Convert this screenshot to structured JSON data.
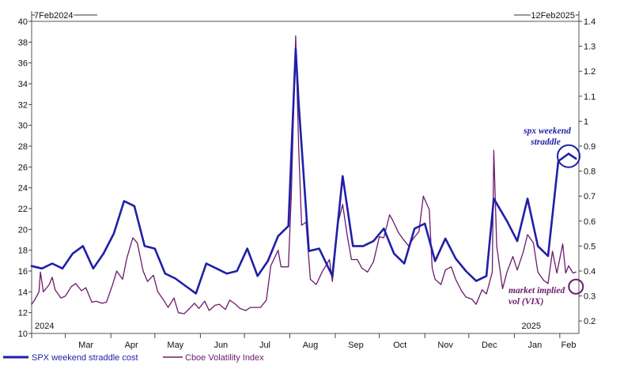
{
  "chart_data": {
    "type": "line",
    "date_markers": {
      "start": "7Feb2024",
      "end": "12Feb2025"
    },
    "year_labels": [
      "2024",
      "2025"
    ],
    "x_ticks": [
      "Mar",
      "Apr",
      "May",
      "Jun",
      "Jul",
      "Aug",
      "Sep",
      "Oct",
      "Nov",
      "Dec",
      "Jan",
      "Feb"
    ],
    "y_left": {
      "ticks": [
        10,
        12,
        14,
        16,
        18,
        20,
        22,
        24,
        26,
        28,
        30,
        32,
        34,
        36,
        38,
        40
      ],
      "range": [
        10,
        40
      ]
    },
    "y_right": {
      "ticks": [
        0.2,
        0.3,
        0.4,
        0.5,
        0.6,
        0.7,
        0.8,
        0.9,
        1,
        1.1,
        1.2,
        1.3,
        1.4
      ],
      "range": [
        0.15,
        1.4
      ]
    },
    "grid": false,
    "legend_position": "bottom-left",
    "series": [
      {
        "name": "SPX weekend straddle cost",
        "axis": "right",
        "color": "#1f1fa8",
        "points": [
          [
            "2024-02-07",
            0.42
          ],
          [
            "2024-02-14",
            0.41
          ],
          [
            "2024-02-21",
            0.43
          ],
          [
            "2024-02-28",
            0.41
          ],
          [
            "2024-03-06",
            0.47
          ],
          [
            "2024-03-13",
            0.5
          ],
          [
            "2024-03-20",
            0.41
          ],
          [
            "2024-03-27",
            0.47
          ],
          [
            "2024-04-03",
            0.55
          ],
          [
            "2024-04-10",
            0.68
          ],
          [
            "2024-04-17",
            0.66
          ],
          [
            "2024-04-24",
            0.5
          ],
          [
            "2024-05-01",
            0.49
          ],
          [
            "2024-05-08",
            0.39
          ],
          [
            "2024-05-15",
            0.37
          ],
          [
            "2024-05-22",
            0.34
          ],
          [
            "2024-05-29",
            0.31
          ],
          [
            "2024-06-05",
            0.43
          ],
          [
            "2024-06-12",
            0.41
          ],
          [
            "2024-06-19",
            0.39
          ],
          [
            "2024-06-26",
            0.4
          ],
          [
            "2024-07-03",
            0.49
          ],
          [
            "2024-07-10",
            0.38
          ],
          [
            "2024-07-17",
            0.44
          ],
          [
            "2024-07-24",
            0.54
          ],
          [
            "2024-07-31",
            0.58
          ],
          [
            "2024-08-05",
            1.29
          ],
          [
            "2024-08-07",
            1.07
          ],
          [
            "2024-08-14",
            0.48
          ],
          [
            "2024-08-21",
            0.49
          ],
          [
            "2024-08-30",
            0.38
          ],
          [
            "2024-09-06",
            0.78
          ],
          [
            "2024-09-13",
            0.5
          ],
          [
            "2024-09-20",
            0.5
          ],
          [
            "2024-09-27",
            0.52
          ],
          [
            "2024-10-04",
            0.57
          ],
          [
            "2024-10-11",
            0.47
          ],
          [
            "2024-10-18",
            0.43
          ],
          [
            "2024-10-25",
            0.57
          ],
          [
            "2024-11-01",
            0.59
          ],
          [
            "2024-11-08",
            0.44
          ],
          [
            "2024-11-15",
            0.53
          ],
          [
            "2024-11-22",
            0.45
          ],
          [
            "2024-11-29",
            0.4
          ],
          [
            "2024-12-06",
            0.36
          ],
          [
            "2024-12-13",
            0.38
          ],
          [
            "2024-12-18",
            0.69
          ],
          [
            "2024-12-27",
            0.6
          ],
          [
            "2025-01-03",
            0.52
          ],
          [
            "2025-01-10",
            0.69
          ],
          [
            "2025-01-17",
            0.5
          ],
          [
            "2025-01-24",
            0.46
          ],
          [
            "2025-01-31",
            0.84
          ],
          [
            "2025-02-07",
            0.87
          ],
          [
            "2025-02-12",
            0.85
          ]
        ]
      },
      {
        "name": "Cboe Volatility Index",
        "axis": "left",
        "color": "#6b1a6b",
        "points": [
          [
            "2024-02-07",
            12.8
          ],
          [
            "2024-02-09",
            13.2
          ],
          [
            "2024-02-12",
            14.0
          ],
          [
            "2024-02-13",
            15.9
          ],
          [
            "2024-02-15",
            14.0
          ],
          [
            "2024-02-19",
            14.7
          ],
          [
            "2024-02-21",
            15.4
          ],
          [
            "2024-02-23",
            14.2
          ],
          [
            "2024-02-27",
            13.4
          ],
          [
            "2024-03-01",
            13.6
          ],
          [
            "2024-03-05",
            14.5
          ],
          [
            "2024-03-08",
            14.8
          ],
          [
            "2024-03-12",
            14.1
          ],
          [
            "2024-03-15",
            14.4
          ],
          [
            "2024-03-19",
            13.0
          ],
          [
            "2024-03-22",
            13.1
          ],
          [
            "2024-03-26",
            12.9
          ],
          [
            "2024-03-29",
            13.0
          ],
          [
            "2024-04-02",
            14.6
          ],
          [
            "2024-04-05",
            16.0
          ],
          [
            "2024-04-09",
            15.2
          ],
          [
            "2024-04-12",
            17.3
          ],
          [
            "2024-04-16",
            19.2
          ],
          [
            "2024-04-19",
            18.7
          ],
          [
            "2024-04-23",
            16.0
          ],
          [
            "2024-04-26",
            15.0
          ],
          [
            "2024-04-30",
            15.6
          ],
          [
            "2024-05-03",
            14.0
          ],
          [
            "2024-05-07",
            13.2
          ],
          [
            "2024-05-10",
            12.5
          ],
          [
            "2024-05-14",
            13.4
          ],
          [
            "2024-05-17",
            12.0
          ],
          [
            "2024-05-21",
            11.9
          ],
          [
            "2024-05-24",
            12.3
          ],
          [
            "2024-05-28",
            12.9
          ],
          [
            "2024-05-31",
            12.4
          ],
          [
            "2024-06-04",
            13.1
          ],
          [
            "2024-06-07",
            12.2
          ],
          [
            "2024-06-11",
            12.7
          ],
          [
            "2024-06-14",
            12.8
          ],
          [
            "2024-06-18",
            12.3
          ],
          [
            "2024-06-21",
            13.2
          ],
          [
            "2024-06-25",
            12.8
          ],
          [
            "2024-06-28",
            12.4
          ],
          [
            "2024-07-02",
            12.2
          ],
          [
            "2024-07-05",
            12.5
          ],
          [
            "2024-07-09",
            12.5
          ],
          [
            "2024-07-12",
            12.5
          ],
          [
            "2024-07-16",
            13.2
          ],
          [
            "2024-07-19",
            16.5
          ],
          [
            "2024-07-24",
            18.0
          ],
          [
            "2024-07-26",
            16.4
          ],
          [
            "2024-07-31",
            16.4
          ],
          [
            "2024-08-02",
            23.4
          ],
          [
            "2024-08-05",
            38.6
          ],
          [
            "2024-08-07",
            27.8
          ],
          [
            "2024-08-09",
            20.4
          ],
          [
            "2024-08-12",
            20.7
          ],
          [
            "2024-08-15",
            15.2
          ],
          [
            "2024-08-19",
            14.7
          ],
          [
            "2024-08-23",
            15.9
          ],
          [
            "2024-08-28",
            17.1
          ],
          [
            "2024-08-30",
            15.0
          ],
          [
            "2024-09-03",
            20.7
          ],
          [
            "2024-09-06",
            22.4
          ],
          [
            "2024-09-09",
            19.5
          ],
          [
            "2024-09-12",
            17.1
          ],
          [
            "2024-09-16",
            17.1
          ],
          [
            "2024-09-19",
            16.3
          ],
          [
            "2024-09-23",
            15.9
          ],
          [
            "2024-09-27",
            16.9
          ],
          [
            "2024-10-01",
            19.3
          ],
          [
            "2024-10-04",
            19.2
          ],
          [
            "2024-10-08",
            21.4
          ],
          [
            "2024-10-10",
            20.9
          ],
          [
            "2024-10-14",
            19.7
          ],
          [
            "2024-10-17",
            19.1
          ],
          [
            "2024-10-21",
            18.4
          ],
          [
            "2024-10-24",
            19.1
          ],
          [
            "2024-10-28",
            19.8
          ],
          [
            "2024-10-31",
            23.2
          ],
          [
            "2024-11-04",
            21.9
          ],
          [
            "2024-11-06",
            16.3
          ],
          [
            "2024-11-08",
            15.2
          ],
          [
            "2024-11-12",
            14.7
          ],
          [
            "2024-11-15",
            16.1
          ],
          [
            "2024-11-19",
            16.4
          ],
          [
            "2024-11-22",
            15.2
          ],
          [
            "2024-11-26",
            14.1
          ],
          [
            "2024-11-29",
            13.5
          ],
          [
            "2024-12-03",
            13.3
          ],
          [
            "2024-12-06",
            12.8
          ],
          [
            "2024-12-10",
            14.2
          ],
          [
            "2024-12-13",
            13.8
          ],
          [
            "2024-12-17",
            15.9
          ],
          [
            "2024-12-18",
            27.6
          ],
          [
            "2024-12-20",
            18.4
          ],
          [
            "2024-12-24",
            14.3
          ],
          [
            "2024-12-27",
            15.9
          ],
          [
            "2024-12-31",
            17.4
          ],
          [
            "2025-01-03",
            16.1
          ],
          [
            "2025-01-07",
            17.8
          ],
          [
            "2025-01-10",
            19.5
          ],
          [
            "2025-01-14",
            18.7
          ],
          [
            "2025-01-17",
            15.9
          ],
          [
            "2025-01-21",
            15.1
          ],
          [
            "2025-01-24",
            14.8
          ],
          [
            "2025-01-27",
            17.9
          ],
          [
            "2025-01-30",
            15.8
          ],
          [
            "2025-02-03",
            18.6
          ],
          [
            "2025-02-05",
            15.8
          ],
          [
            "2025-02-07",
            16.5
          ],
          [
            "2025-02-10",
            15.8
          ],
          [
            "2025-02-12",
            15.9
          ]
        ]
      }
    ],
    "annotations": [
      {
        "text_lines": [
          "spx weekend",
          "straddle"
        ],
        "target_series": "SPX weekend straddle cost",
        "target_x": "2025-02-07",
        "target_y": 0.86
      },
      {
        "text_lines": [
          "market implied",
          "vol  (VIX)"
        ],
        "target_series": "Cboe Volatility Index",
        "target_x": "2025-02-12",
        "target_y": 14.5
      }
    ]
  }
}
